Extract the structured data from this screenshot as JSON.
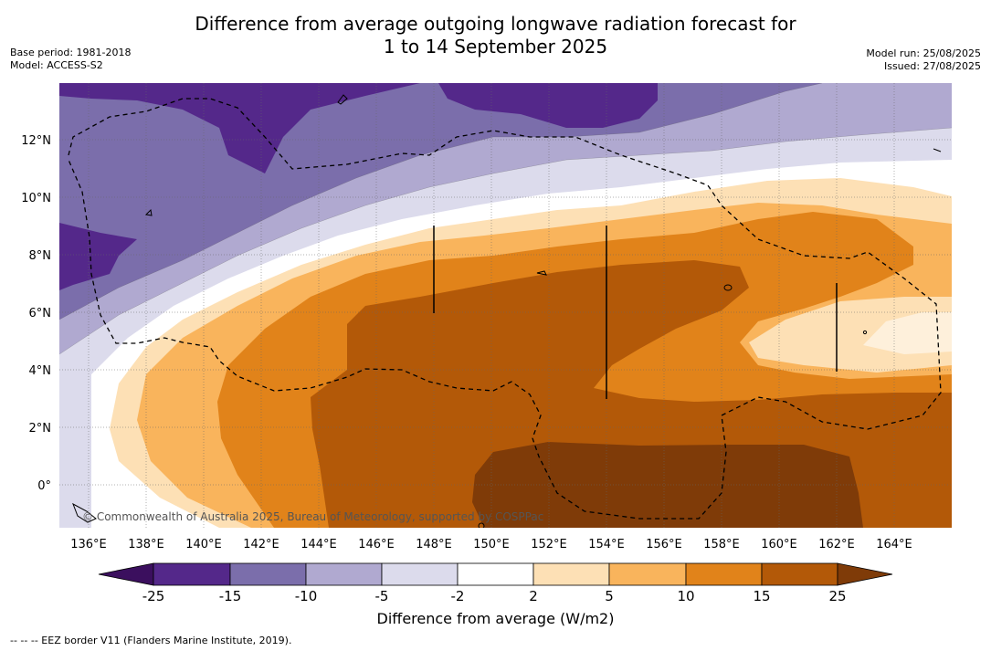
{
  "title_line1": "Difference from average outgoing longwave radiation forecast for",
  "title_line2": "1 to 14 September 2025",
  "base_period": "Base period: 1981-2018",
  "model": "Model: ACCESS-S2",
  "model_run": "Model run: 25/08/2025",
  "issued": "Issued: 27/08/2025",
  "copyright": "© Commonwealth of Australia 2025, Bureau of Meteorology, supported by COSPPac",
  "colorbar_label": "Difference from average (W/m2)",
  "footnote": "--  --  -- EEZ border V11 (Flanders Marine Institute, 2019).",
  "lon_labels": [
    "136°E",
    "138°E",
    "140°E",
    "142°E",
    "144°E",
    "146°E",
    "148°E",
    "150°E",
    "152°E",
    "154°E",
    "156°E",
    "158°E",
    "160°E",
    "162°E",
    "164°E"
  ],
  "lat_labels": [
    "12°N",
    "10°N",
    "8°N",
    "6°N",
    "4°N",
    "2°N",
    "0°"
  ],
  "colorbar_ticks": [
    "-25",
    "-15",
    "-10",
    "-5",
    "-2",
    "2",
    "5",
    "10",
    "15",
    "25"
  ],
  "colors": {
    "lt_neg25": "#3b0f5e",
    "neg25_neg15": "#54288a",
    "neg15_neg10": "#7b6eab",
    "neg10_neg5": "#b0a9d0",
    "neg5_neg2": "#dcdbec",
    "neg2_2": "#ffffff",
    "2_5": "#fde0b5",
    "5_10": "#f9b45c",
    "10_15": "#e1831a",
    "15_25": "#b35908",
    "gt_25": "#7f3b08"
  }
}
